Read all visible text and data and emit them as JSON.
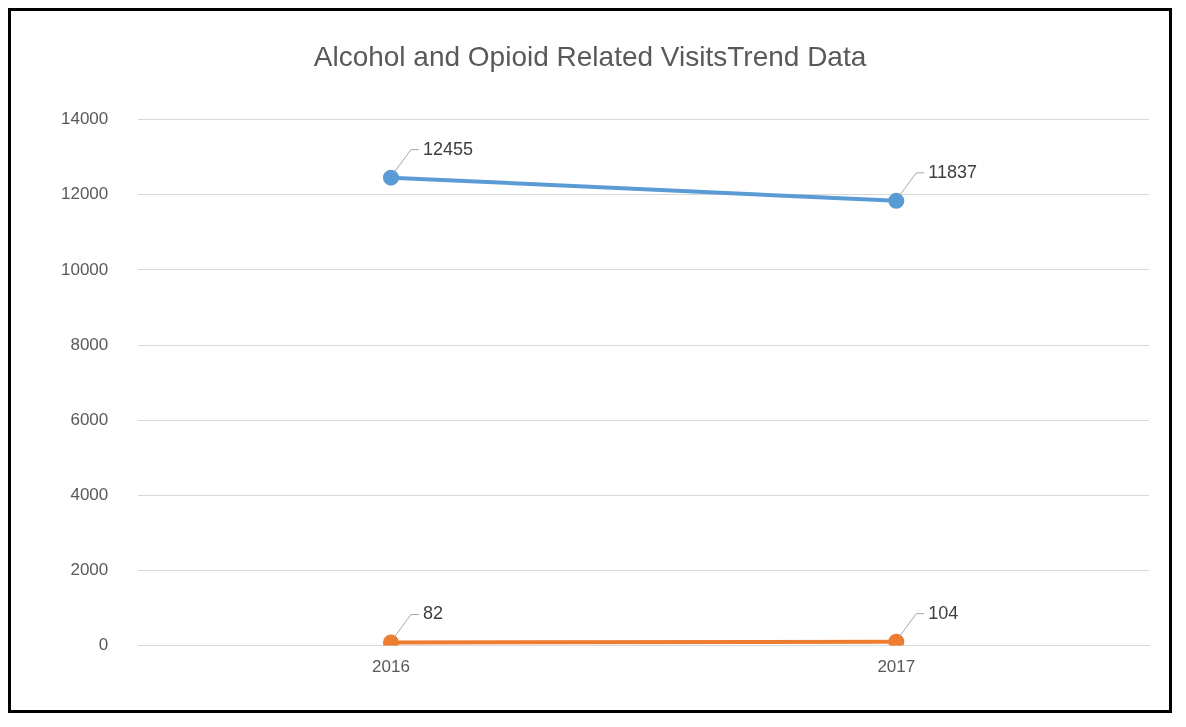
{
  "chart_data": {
    "type": "line",
    "title": "Alcohol and Opioid Related VisitsTrend Data",
    "categories": [
      "2016",
      "2017"
    ],
    "series": [
      {
        "color": "#5b9bd5",
        "values": [
          12455,
          11837
        ]
      },
      {
        "color": "#ed7d31",
        "values": [
          82,
          104
        ]
      }
    ],
    "ylim": [
      0,
      14000
    ],
    "yticks": [
      0,
      2000,
      4000,
      6000,
      8000,
      10000,
      12000,
      14000
    ],
    "grid": "y",
    "legend": false,
    "marker": "circle",
    "line_style": "solid",
    "data_labels": true
  }
}
